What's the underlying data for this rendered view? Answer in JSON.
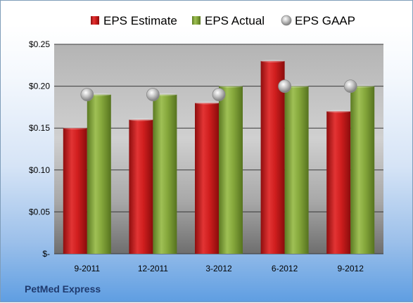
{
  "chart_data": {
    "type": "bar",
    "categories": [
      "9-2011",
      "12-2011",
      "3-2012",
      "6-2012",
      "9-2012"
    ],
    "series": [
      {
        "name": "EPS Estimate",
        "kind": "bar",
        "color": "#cc1c1c",
        "values": [
          0.15,
          0.16,
          0.18,
          0.23,
          0.17
        ]
      },
      {
        "name": "EPS Actual",
        "kind": "bar",
        "color": "#7fa23a",
        "values": [
          0.19,
          0.19,
          0.2,
          0.2,
          0.2
        ]
      },
      {
        "name": "EPS GAAP",
        "kind": "marker",
        "color": "#b0b0b0",
        "values": [
          0.19,
          0.19,
          0.19,
          0.2,
          0.2
        ]
      }
    ],
    "y_ticks": [
      {
        "value": 0,
        "label": "$-"
      },
      {
        "value": 0.05,
        "label": "$0.05"
      },
      {
        "value": 0.1,
        "label": "$0.10"
      },
      {
        "value": 0.15,
        "label": "$0.15"
      },
      {
        "value": 0.2,
        "label": "$0.20"
      },
      {
        "value": 0.25,
        "label": "$0.25"
      }
    ],
    "ylim": [
      0,
      0.25
    ],
    "grid": true,
    "legend_position": "top",
    "footer_label": "PetMed Express"
  }
}
